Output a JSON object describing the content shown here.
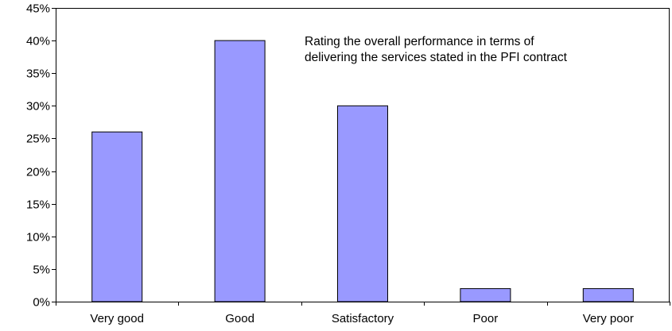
{
  "chart_data": {
    "type": "bar",
    "title": "",
    "annotation_lines": [
      "Rating the overall performance in terms of",
      "delivering the services stated in the PFI contract"
    ],
    "categories": [
      "Very good",
      "Good",
      "Satisfactory",
      "Poor",
      "Very poor"
    ],
    "values": [
      26,
      40,
      30,
      2,
      2
    ],
    "value_unit": "%",
    "ylim": [
      0,
      45
    ],
    "ytick_step": 5,
    "ytick_labels": [
      "0%",
      "5%",
      "10%",
      "15%",
      "20%",
      "25%",
      "30%",
      "35%",
      "40%",
      "45%"
    ],
    "xlabel": "",
    "ylabel": "",
    "grid": false,
    "legend": "none",
    "bar_color": "#9999ff",
    "bar_edge_color": "#000000"
  }
}
